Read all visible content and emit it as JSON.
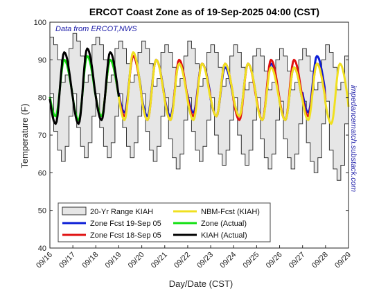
{
  "chart_data": {
    "type": "line",
    "title": "ERCOT Coast Zone as of 19-Sep-2025 04:00 (CST)",
    "xlabel": "Day/Date (CST)",
    "ylabel": "Temperature (F)",
    "ylim": [
      40,
      100
    ],
    "yticks": [
      40,
      50,
      60,
      70,
      80,
      90,
      100
    ],
    "xlim": [
      "2025-09-16",
      "2025-09-29"
    ],
    "xticks": [
      "09/16",
      "09/17",
      "09/18",
      "09/19",
      "09/20",
      "09/21",
      "09/22",
      "09/23",
      "09/24",
      "09/25",
      "09/26",
      "09/27",
      "09/28",
      "09/29"
    ],
    "annotation": "Data from ERCOT,NWS",
    "side_text": "impedancematch.substack.com",
    "legend_placement": "bottom-left",
    "grid": false,
    "range_band": {
      "name": "20-Yr Range KIAH",
      "color": "#e6e6e6",
      "edge_color": "#333333",
      "daily_max": [
        96,
        97,
        96,
        95,
        95,
        94,
        95,
        94,
        94,
        93,
        93,
        93,
        94
      ],
      "daily_min": [
        63,
        64,
        64,
        64,
        63,
        61,
        63,
        62,
        62,
        61,
        61,
        60,
        58
      ],
      "diurnal_high": [
        84,
        84,
        84,
        84,
        83,
        83,
        83,
        83,
        82,
        82,
        82,
        82,
        82
      ],
      "diurnal_low": [
        81,
        81,
        81,
        81,
        81,
        80,
        80,
        80,
        80,
        80,
        79,
        79,
        79
      ]
    },
    "series": [
      {
        "name": "Zone Fcst 19-Sep 05",
        "color": "#0a1cd6",
        "days": [
          3,
          12
        ],
        "highs": [
          91,
          90,
          89,
          89,
          88,
          89,
          89,
          88,
          91,
          82
        ],
        "lows": [
          76,
          75,
          75,
          76,
          75,
          75,
          74,
          74,
          76,
          77
        ]
      },
      {
        "name": "Zone Fcst 18-Sep 05",
        "color": "#e01010",
        "days": [
          2,
          12
        ],
        "highs": [
          90,
          91,
          90,
          90,
          89,
          89,
          89,
          90,
          90,
          89,
          88
        ],
        "lows": [
          75,
          75,
          74,
          74,
          75,
          75,
          74,
          74,
          74,
          75,
          75
        ]
      },
      {
        "name": "NBM-Fcst (KIAH)",
        "color": "#f0e020",
        "days": [
          3,
          13
        ],
        "highs": [
          92,
          90,
          89,
          89,
          89,
          89,
          88,
          88,
          89,
          89,
          88
        ],
        "lows": [
          74,
          74,
          74,
          74,
          75,
          75,
          74,
          74,
          74,
          73,
          72
        ]
      },
      {
        "name": "Zone (Actual)",
        "color": "#10e010",
        "days": [
          0,
          3
        ],
        "highs": [
          90,
          91,
          90
        ],
        "lows": [
          75,
          74,
          75
        ]
      },
      {
        "name": "KIAH (Actual)",
        "color": "#000000",
        "days": [
          0,
          3
        ],
        "highs": [
          92,
          93,
          92
        ],
        "lows": [
          73,
          73,
          74
        ]
      }
    ]
  }
}
